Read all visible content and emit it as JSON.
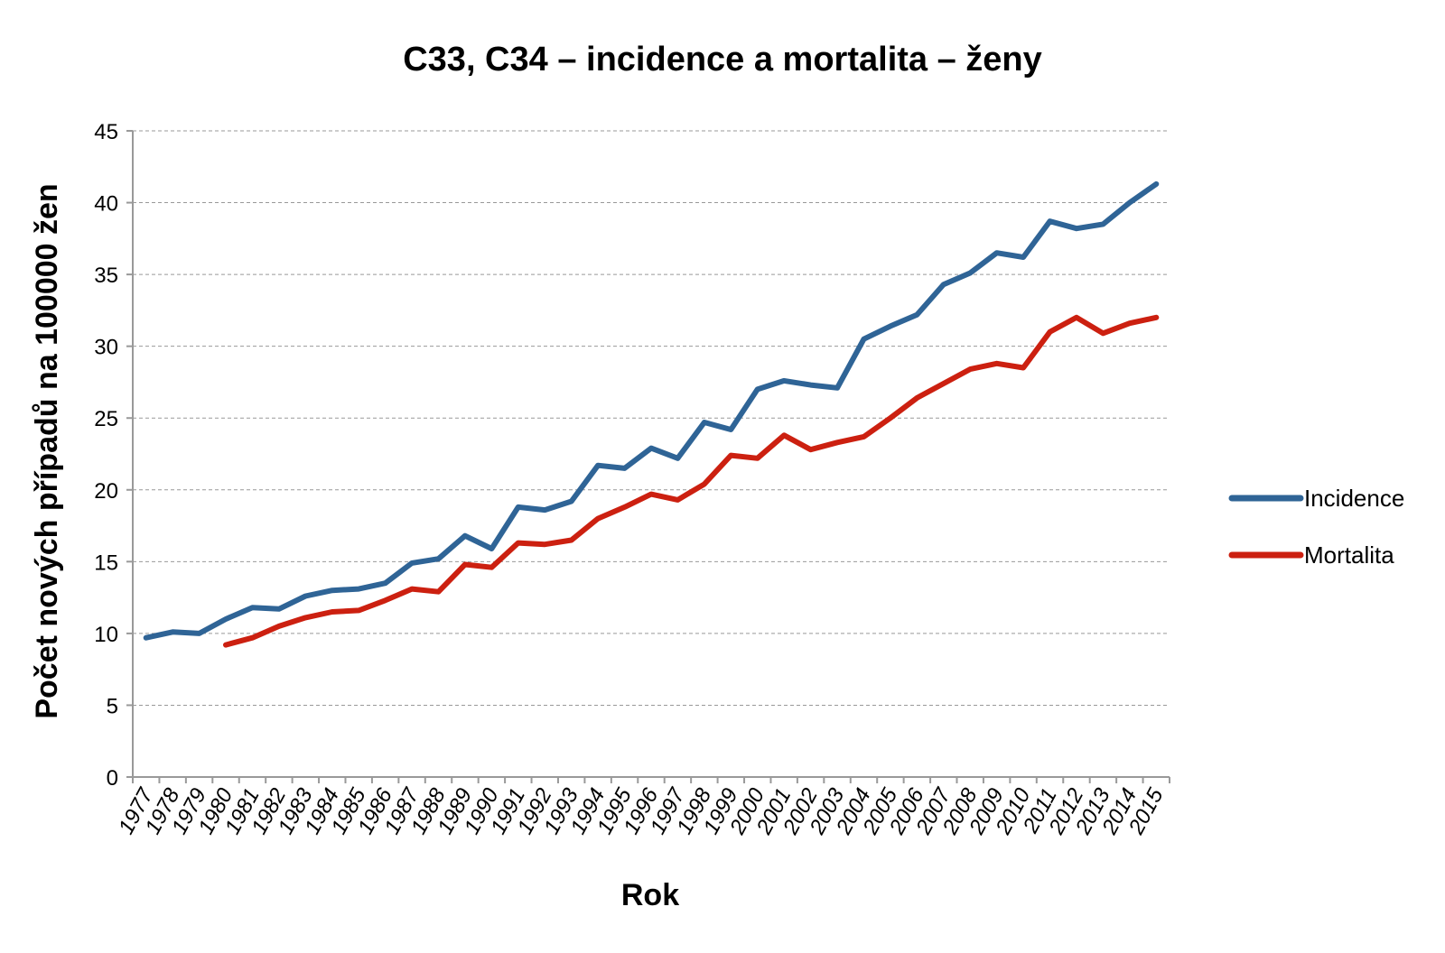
{
  "chart_data": {
    "type": "line",
    "title": "C33, C34 – incidence a mortalita – ženy",
    "xlabel": "Rok",
    "ylabel": "Počet nových případů na 100000 žen",
    "ylim": [
      0,
      45
    ],
    "yticks": [
      0,
      5,
      10,
      15,
      20,
      25,
      30,
      35,
      40,
      45
    ],
    "grid": true,
    "legend_position": "right",
    "categories": [
      "1977",
      "1978",
      "1979",
      "1980",
      "1981",
      "1982",
      "1983",
      "1984",
      "1985",
      "1986",
      "1987",
      "1988",
      "1989",
      "1990",
      "1991",
      "1992",
      "1993",
      "1994",
      "1995",
      "1996",
      "1997",
      "1998",
      "1999",
      "2000",
      "2001",
      "2002",
      "2003",
      "2004",
      "2005",
      "2006",
      "2007",
      "2008",
      "2009",
      "2010",
      "2011",
      "2012",
      "2013",
      "2014",
      "2015"
    ],
    "series": [
      {
        "name": "Incidence",
        "color": "#2F6496",
        "values": [
          9.7,
          10.1,
          10.0,
          11.0,
          11.8,
          11.7,
          12.6,
          13.0,
          13.1,
          13.5,
          14.9,
          15.2,
          16.8,
          15.9,
          18.8,
          18.6,
          19.2,
          21.7,
          21.5,
          22.9,
          22.2,
          24.7,
          24.2,
          27.0,
          27.6,
          27.3,
          27.1,
          30.5,
          31.4,
          32.2,
          34.3,
          35.1,
          36.5,
          36.2,
          38.7,
          38.2,
          38.5,
          40.0,
          41.3
        ]
      },
      {
        "name": "Mortalita",
        "color": "#CC2010",
        "values": [
          null,
          null,
          null,
          9.2,
          9.7,
          10.5,
          11.1,
          11.5,
          11.6,
          12.3,
          13.1,
          12.9,
          14.8,
          14.6,
          16.3,
          16.2,
          16.5,
          18.0,
          18.8,
          19.7,
          19.3,
          20.4,
          22.4,
          22.2,
          23.8,
          22.8,
          23.3,
          23.7,
          25.0,
          26.4,
          27.4,
          28.4,
          28.8,
          28.5,
          31.0,
          32.0,
          30.9,
          31.6,
          32.0
        ]
      }
    ]
  }
}
